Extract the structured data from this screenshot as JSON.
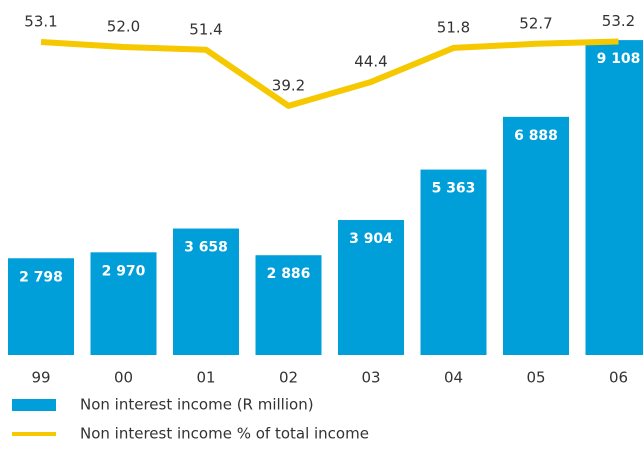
{
  "chart_data": {
    "type": "bar-line",
    "categories": [
      "99",
      "00",
      "01",
      "02",
      "03",
      "04",
      "05",
      "06"
    ],
    "series": [
      {
        "name": "Non interest income (R million)",
        "color": "#009fda",
        "type": "bar",
        "values": [
          2798,
          2970,
          3658,
          2886,
          3904,
          5363,
          6888,
          9108
        ],
        "value_labels": [
          "2 798",
          "2 970",
          "3 658",
          "2 886",
          "3 904",
          "5 363",
          "6 888",
          "9 108"
        ]
      },
      {
        "name": "Non interest income % of total income",
        "color": "#f5c800",
        "type": "line",
        "axis": "y2",
        "values": [
          53.1,
          52.0,
          51.4,
          39.2,
          44.4,
          51.8,
          52.7,
          53.2
        ],
        "value_labels": [
          "53.1",
          "52.0",
          "51.4",
          "39.2",
          "44.4",
          "51.8",
          "52.7",
          "53.2"
        ]
      }
    ],
    "ylim": [
      0,
      9400
    ],
    "y2lim": [
      -15,
      55.7
    ],
    "legend": "bottom-left"
  }
}
